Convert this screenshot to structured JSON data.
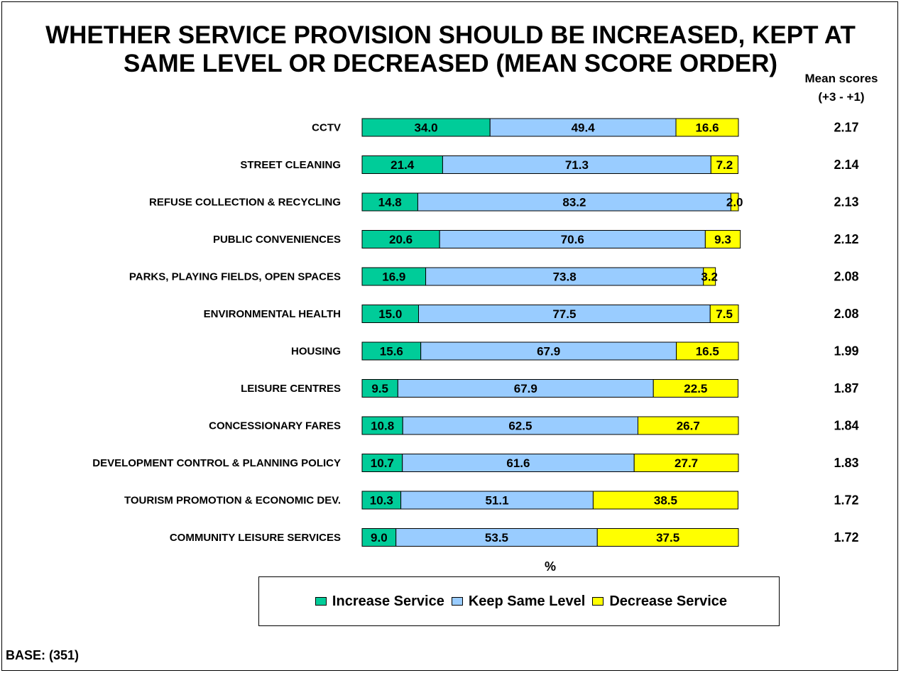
{
  "title_line1": "WHETHER SERVICE PROVISION SHOULD BE INCREASED, KEPT AT",
  "title_line2": "SAME LEVEL OR DECREASED (MEAN SCORE ORDER)",
  "mean_header_line1": "Mean scores",
  "mean_header_line2": "(+3 - +1)",
  "base_note": "BASE: (351)",
  "colors": {
    "increase": "#00CC99",
    "keep": "#99CCFF",
    "decrease": "#FFFF00"
  },
  "chart_data": {
    "type": "bar",
    "orientation": "horizontal",
    "stacked": true,
    "title": "WHETHER SERVICE PROVISION SHOULD BE INCREASED, KEPT AT SAME LEVEL OR DECREASED (MEAN SCORE ORDER)",
    "xlabel": "%",
    "xlim": [
      0,
      100
    ],
    "legend_position": "bottom",
    "categories": [
      "CCTV",
      "STREET CLEANING",
      "REFUSE COLLECTION & RECYCLING",
      "PUBLIC CONVENIENCES",
      "PARKS, PLAYING FIELDS, OPEN SPACES",
      "ENVIRONMENTAL HEALTH",
      "HOUSING",
      "LEISURE CENTRES",
      "CONCESSIONARY FARES",
      "DEVELOPMENT CONTROL & PLANNING POLICY",
      "TOURISM PROMOTION & ECONOMIC DEV.",
      "COMMUNITY LEISURE SERVICES"
    ],
    "series": [
      {
        "name": "Increase Service",
        "values": [
          34.0,
          21.4,
          14.8,
          20.6,
          16.9,
          15.0,
          15.6,
          9.5,
          10.8,
          10.7,
          10.3,
          9.0
        ]
      },
      {
        "name": "Keep Same Level",
        "values": [
          49.4,
          71.3,
          83.2,
          70.6,
          73.8,
          77.5,
          67.9,
          67.9,
          62.5,
          61.6,
          51.1,
          53.5
        ]
      },
      {
        "name": "Decrease Service",
        "values": [
          16.6,
          7.2,
          2.0,
          9.3,
          3.2,
          7.5,
          16.5,
          22.5,
          26.7,
          27.7,
          38.5,
          37.5
        ]
      }
    ],
    "mean_scores": [
      "2.17",
      "2.14",
      "2.13",
      "2.12",
      "2.08",
      "2.08",
      "1.99",
      "1.87",
      "1.84",
      "1.83",
      "1.72",
      "1.72"
    ]
  }
}
